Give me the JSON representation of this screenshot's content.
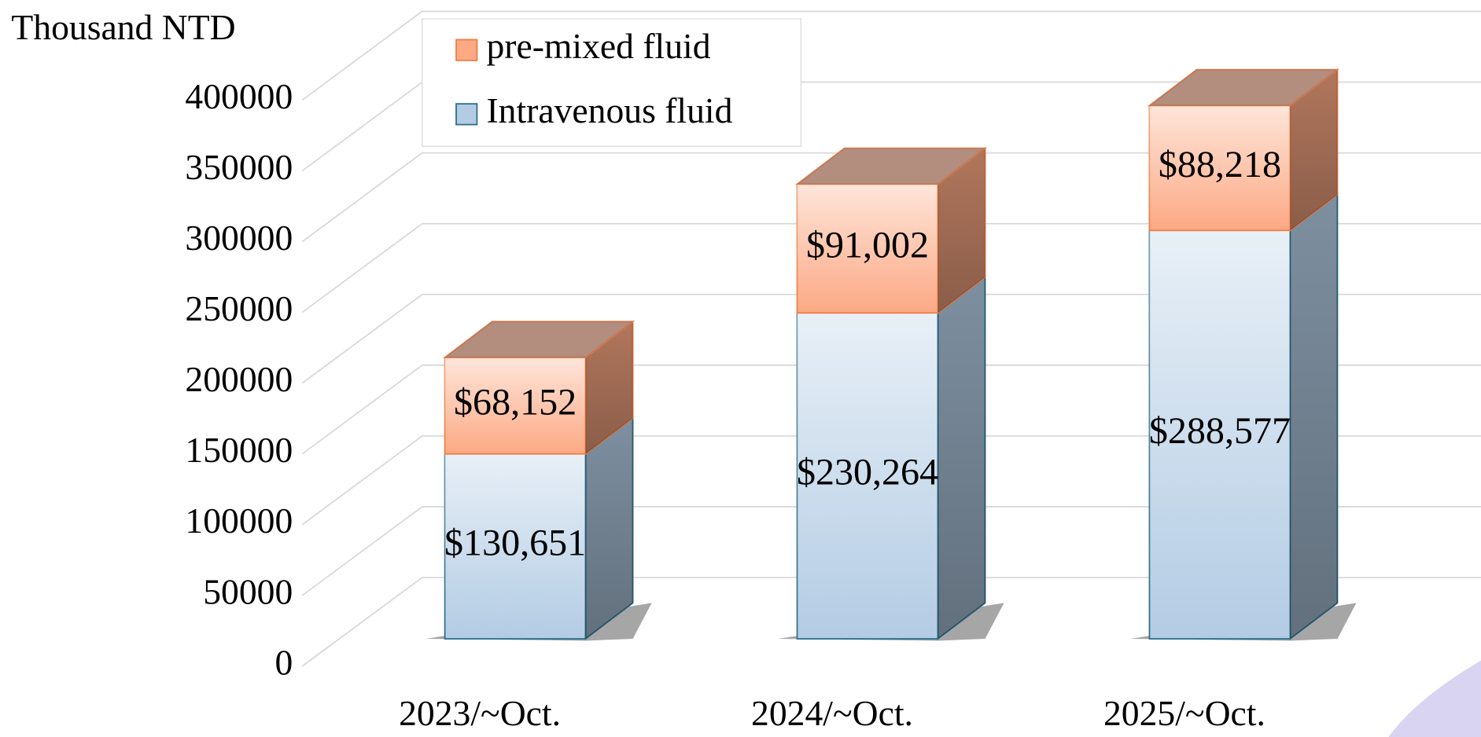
{
  "chart_data": {
    "type": "bar3d_stacked",
    "y_axis_label": "Thousand NTD",
    "categories": [
      "2023/~Oct.",
      "2024/~Oct.",
      "2025/~Oct."
    ],
    "series": [
      {
        "name": "Intravenous fluid",
        "color": "#b3cce4",
        "values": [
          130651,
          230264,
          288577
        ],
        "value_labels": [
          "$130,651",
          "$230,264",
          "$288,577"
        ]
      },
      {
        "name": "pre-mixed fluid",
        "color": "#fca984",
        "values": [
          68152,
          91002,
          88218
        ],
        "value_labels": [
          "$68,152",
          "$91,002",
          "$88,218"
        ]
      }
    ],
    "ylim": [
      0,
      400000
    ],
    "yticks": [
      0,
      50000,
      100000,
      150000,
      200000,
      250000,
      300000,
      350000,
      400000
    ],
    "grid": true
  }
}
